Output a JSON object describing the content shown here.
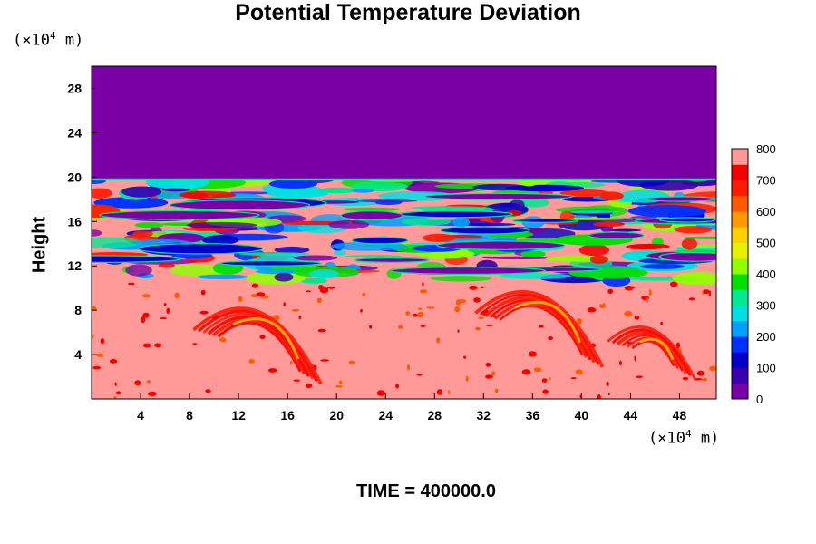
{
  "chart_data": {
    "type": "heatmap",
    "title": "Potential Temperature Deviation",
    "ylabel": "Height",
    "xunit_prefix": "(×10",
    "xunit_exp": "4",
    "xunit_suffix": " m)",
    "yunit_prefix": "(×10",
    "yunit_exp": "4",
    "yunit_suffix": " m)",
    "xlim": [
      0,
      51
    ],
    "ylim": [
      0,
      30
    ],
    "xticks": [
      4,
      8,
      12,
      16,
      20,
      24,
      28,
      32,
      36,
      40,
      44,
      48
    ],
    "yticks": [
      4,
      8,
      12,
      16,
      20,
      24,
      28
    ],
    "colorbar": {
      "min": 0,
      "max": 800,
      "ticks": [
        0,
        100,
        200,
        300,
        400,
        500,
        600,
        700,
        800
      ],
      "colors": [
        "#7a00a6",
        "#3a00b0",
        "#0000c8",
        "#0030ff",
        "#00a0ff",
        "#00e0e0",
        "#00e890",
        "#00e000",
        "#90ff00",
        "#e6f000",
        "#ffd000",
        "#ff9a00",
        "#ff5a00",
        "#ff1a00",
        "#f40000",
        "#ff9a98"
      ]
    },
    "fields": {
      "upper_uniform_value": 0,
      "upper_layer_base_height": 19.8,
      "mid_turbulent_layer": [
        10.5,
        19.8
      ],
      "lower_background_value": 800,
      "arc_structures": [
        {
          "center_x": 14,
          "center_y": 4.5
        },
        {
          "center_x": 37,
          "center_y": 6
        },
        {
          "center_x": 46,
          "center_y": 4
        }
      ]
    }
  },
  "footer": {
    "time_label": "TIME = 400000.0"
  }
}
